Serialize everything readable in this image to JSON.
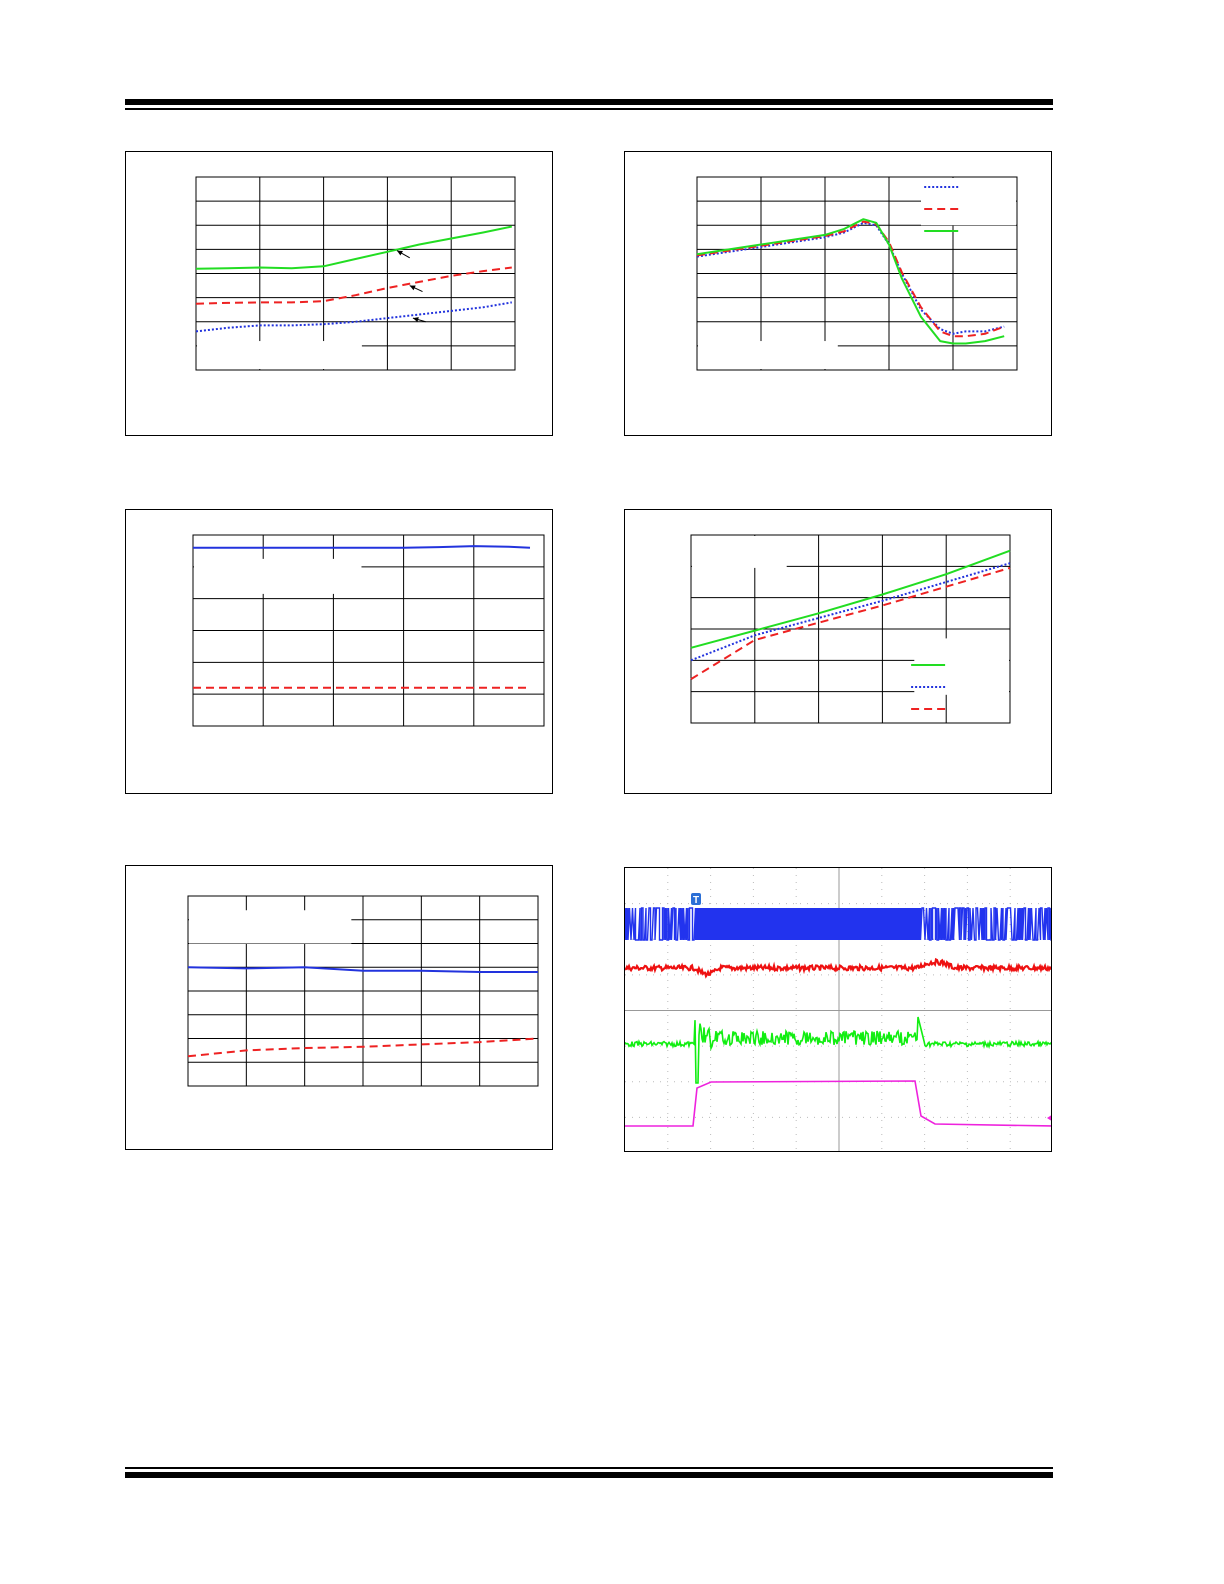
{
  "chart_data": [
    {
      "id": "chart-a",
      "type": "line",
      "xlim": [
        0,
        5
      ],
      "ylim": [
        0,
        8
      ],
      "xdivs": 5,
      "ydivs": 8,
      "grid": true,
      "series": [
        {
          "color": "#22dd22",
          "dash": "solid",
          "x": [
            0,
            0.5,
            1,
            1.5,
            2,
            2.5,
            3,
            3.5,
            4,
            4.5,
            4.95
          ],
          "y": [
            4.2,
            4.22,
            4.25,
            4.22,
            4.3,
            4.6,
            4.9,
            5.2,
            5.45,
            5.7,
            5.95
          ]
        },
        {
          "color": "#ee2222",
          "dash": "dashed",
          "x": [
            0,
            0.5,
            1,
            1.5,
            2,
            2.5,
            3,
            3.5,
            4,
            4.5,
            4.95
          ],
          "y": [
            2.75,
            2.78,
            2.8,
            2.8,
            2.85,
            3.1,
            3.4,
            3.65,
            3.9,
            4.1,
            4.25
          ]
        },
        {
          "color": "#2233dd",
          "dash": "dotted",
          "x": [
            0,
            0.5,
            1,
            1.5,
            2,
            2.5,
            3,
            3.5,
            4,
            4.5,
            4.95
          ],
          "y": [
            1.6,
            1.75,
            1.85,
            1.85,
            1.9,
            2.0,
            2.15,
            2.3,
            2.45,
            2.6,
            2.8
          ]
        }
      ],
      "arrows": [
        {
          "from": [
            3.35,
            4.65
          ],
          "to": [
            3.15,
            4.95
          ]
        },
        {
          "from": [
            3.55,
            3.25
          ],
          "to": [
            3.35,
            3.5
          ]
        },
        {
          "from": [
            3.6,
            2.0
          ],
          "to": [
            3.4,
            2.15
          ]
        }
      ]
    },
    {
      "id": "chart-b",
      "type": "line",
      "xlim": [
        0,
        5
      ],
      "ylim": [
        0,
        8
      ],
      "xdivs": 5,
      "ydivs": 8,
      "grid": true,
      "legend_loc": "top-right",
      "series": [
        {
          "color": "#2233dd",
          "dash": "dotted",
          "x": [
            0,
            0.5,
            1,
            1.5,
            2,
            2.3,
            2.6,
            2.8,
            3.0,
            3.2,
            3.5,
            3.8,
            4.0,
            4.2,
            4.5,
            4.8
          ],
          "y": [
            4.7,
            4.9,
            5.1,
            5.3,
            5.5,
            5.7,
            6.1,
            6.0,
            5.2,
            4.0,
            2.5,
            1.7,
            1.5,
            1.6,
            1.6,
            1.8
          ]
        },
        {
          "color": "#ee2222",
          "dash": "dashed",
          "x": [
            0,
            0.5,
            1,
            1.5,
            2,
            2.3,
            2.6,
            2.8,
            3.0,
            3.2,
            3.5,
            3.8,
            4.0,
            4.2,
            4.5,
            4.8
          ],
          "y": [
            4.75,
            4.95,
            5.15,
            5.35,
            5.55,
            5.75,
            6.15,
            6.05,
            5.3,
            4.05,
            2.6,
            1.6,
            1.4,
            1.4,
            1.5,
            1.8
          ]
        },
        {
          "color": "#22dd22",
          "dash": "solid",
          "x": [
            0,
            0.5,
            1,
            1.5,
            2,
            2.3,
            2.6,
            2.8,
            3.0,
            3.2,
            3.5,
            3.8,
            4.0,
            4.2,
            4.5,
            4.8
          ],
          "y": [
            4.8,
            5.0,
            5.2,
            5.4,
            5.6,
            5.85,
            6.25,
            6.1,
            5.2,
            3.8,
            2.2,
            1.2,
            1.1,
            1.1,
            1.2,
            1.4
          ]
        }
      ]
    },
    {
      "id": "chart-c",
      "type": "line",
      "xlim": [
        0,
        5
      ],
      "ylim": [
        0,
        6
      ],
      "xdivs": 5,
      "ydivs": 6,
      "grid": true,
      "series": [
        {
          "color": "#2233dd",
          "dash": "solid",
          "x": [
            0,
            1,
            2,
            3,
            3.5,
            4,
            4.5,
            4.8
          ],
          "y": [
            5.6,
            5.6,
            5.6,
            5.6,
            5.62,
            5.65,
            5.63,
            5.6
          ]
        },
        {
          "color": "#ee2222",
          "dash": "dashed",
          "x": [
            0,
            1,
            2,
            3,
            4,
            4.8
          ],
          "y": [
            1.2,
            1.2,
            1.2,
            1.2,
            1.2,
            1.2
          ]
        }
      ]
    },
    {
      "id": "chart-d",
      "type": "line",
      "xlim": [
        0,
        5
      ],
      "ylim": [
        0,
        6
      ],
      "xdivs": 5,
      "ydivs": 6,
      "grid": true,
      "legend_loc": "bottom-right",
      "series": [
        {
          "color": "#22dd22",
          "dash": "solid",
          "x": [
            0,
            1,
            2,
            3,
            4,
            5
          ],
          "y": [
            2.4,
            2.95,
            3.5,
            4.1,
            4.75,
            5.5
          ]
        },
        {
          "color": "#2233dd",
          "dash": "dotted",
          "x": [
            0,
            1,
            2,
            3,
            4,
            5
          ],
          "y": [
            2.0,
            2.8,
            3.35,
            3.9,
            4.5,
            5.1
          ]
        },
        {
          "color": "#ee2222",
          "dash": "dashed",
          "x": [
            0,
            1,
            2,
            3,
            4,
            5
          ],
          "y": [
            1.4,
            2.65,
            3.2,
            3.75,
            4.35,
            4.95
          ]
        }
      ]
    },
    {
      "id": "chart-e",
      "type": "line",
      "xlim": [
        0,
        6
      ],
      "ylim": [
        0,
        8
      ],
      "xdivs": 6,
      "ydivs": 8,
      "grid": true,
      "series": [
        {
          "color": "#2233dd",
          "dash": "solid",
          "x": [
            0,
            1,
            2,
            3,
            4,
            5,
            6
          ],
          "y": [
            5.0,
            4.95,
            5.0,
            4.85,
            4.85,
            4.8,
            4.8
          ]
        },
        {
          "color": "#ee2222",
          "dash": "dashed",
          "x": [
            0,
            1,
            2,
            3,
            4,
            5,
            6
          ],
          "y": [
            1.25,
            1.5,
            1.6,
            1.65,
            1.75,
            1.85,
            2.0
          ]
        }
      ]
    }
  ],
  "scope": {
    "trace_colors": [
      "#2233ee",
      "#ee1111",
      "#11ee11",
      "#ee22dd"
    ],
    "trigger_label": "T"
  }
}
